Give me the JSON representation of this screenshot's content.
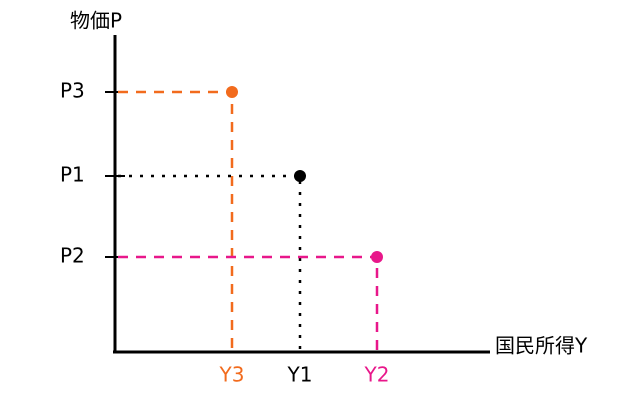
{
  "axes": {
    "y_label": "物価P",
    "x_label": "国民所得Y"
  },
  "points": [
    {
      "price_label": "P3",
      "income_label": "Y3",
      "color": "#f26b1d"
    },
    {
      "price_label": "P1",
      "income_label": "Y1",
      "color": "#000000"
    },
    {
      "price_label": "P2",
      "income_label": "Y2",
      "color": "#e8178a"
    }
  ]
}
